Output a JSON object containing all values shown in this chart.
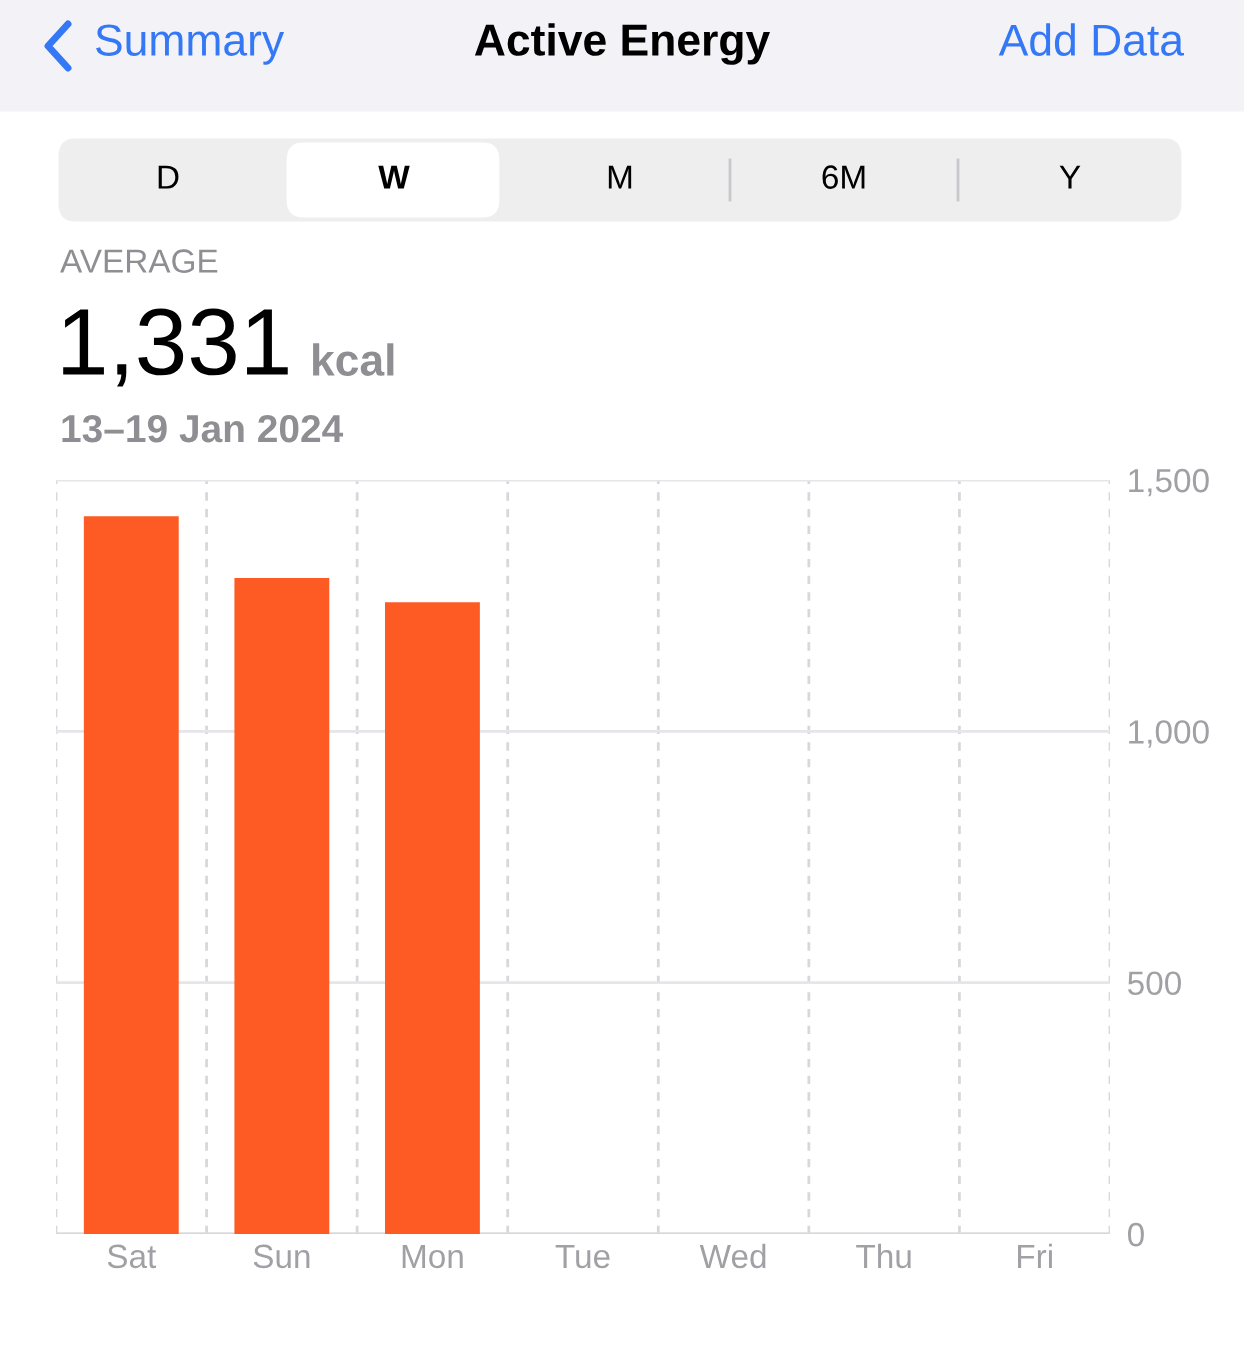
{
  "chart_data": {
    "type": "bar",
    "title": "Active Energy",
    "annotations": [
      "Summary",
      "Add Data",
      "D",
      "W",
      "M",
      "6M",
      "Y",
      "AVERAGE",
      "1,331",
      "kcal",
      "13–19 Jan 2024"
    ],
    "categories": [
      "Sat",
      "Sun",
      "Mon",
      "Tue",
      "Wed",
      "Thu",
      "Fri"
    ],
    "values": [
      1428,
      1305,
      1257,
      null,
      null,
      null,
      null
    ],
    "color": "#fe5a24",
    "ylim": [
      0,
      1500
    ],
    "yticks": [
      0,
      500,
      {
        "value": 1000,
        "label": "1,000"
      },
      {
        "value": 1500,
        "label": "1,500"
      }
    ],
    "grid": true
  }
}
